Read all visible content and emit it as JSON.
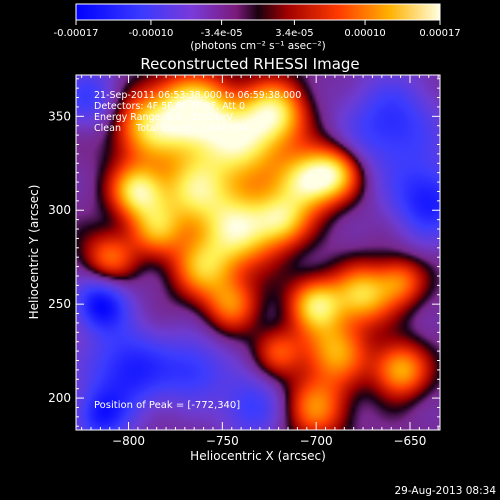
{
  "chart_data": {
    "type": "heatmap",
    "title": "Reconstructed RHESSI Image",
    "xlabel": "Heliocentric X (arcsec)",
    "ylabel": "Heliocentric Y (arcsec)",
    "xlim": [
      -828,
      -634
    ],
    "ylim": [
      183,
      372
    ],
    "xticks": [
      -800,
      -750,
      -700,
      -650
    ],
    "yticks": [
      200,
      250,
      300,
      350
    ],
    "colorbar": {
      "ticks": [
        "-0.00017",
        "-0.00010",
        "-3.4e-05",
        "3.4e-05",
        "0.00010",
        "0.00017"
      ],
      "tick_values": [
        -0.00017,
        -0.0001,
        -3.4e-05,
        3.4e-05,
        0.0001,
        0.00017
      ],
      "range": [
        -0.00017,
        0.00017
      ],
      "units_label": "(photons cm⁻² s⁻¹ asec⁻²)"
    },
    "info_lines": [
      "21-Sep-2011 06:53:38.000 to 06:59:38.000",
      "Detectors: 4F 5F 6F 7F 8F, Att 0",
      "Energy Range: 6.0 - 25.0 keV",
      "Clean     Total Counts: 2.64E+04"
    ],
    "peak_label": "Position of Peak = [-772,340]",
    "peak": {
      "x": -772,
      "y": 340
    },
    "blobs": [
      {
        "x": -765,
        "y": 352,
        "v": 1.0,
        "s": 14
      },
      {
        "x": -740,
        "y": 335,
        "v": 0.85,
        "s": 16
      },
      {
        "x": -722,
        "y": 352,
        "v": 0.8,
        "s": 12
      },
      {
        "x": -790,
        "y": 345,
        "v": 0.75,
        "s": 14
      },
      {
        "x": -795,
        "y": 310,
        "v": 0.9,
        "s": 10
      },
      {
        "x": -765,
        "y": 310,
        "v": 0.8,
        "s": 14
      },
      {
        "x": -740,
        "y": 290,
        "v": 0.9,
        "s": 14
      },
      {
        "x": -705,
        "y": 315,
        "v": 0.9,
        "s": 11
      },
      {
        "x": -690,
        "y": 320,
        "v": 0.75,
        "s": 10
      },
      {
        "x": -718,
        "y": 295,
        "v": 0.7,
        "s": 10
      },
      {
        "x": -760,
        "y": 270,
        "v": 0.7,
        "s": 12
      },
      {
        "x": -810,
        "y": 275,
        "v": 0.55,
        "s": 10
      },
      {
        "x": -785,
        "y": 290,
        "v": 0.6,
        "s": 10
      },
      {
        "x": -700,
        "y": 250,
        "v": 0.85,
        "s": 10
      },
      {
        "x": -675,
        "y": 255,
        "v": 0.8,
        "s": 11
      },
      {
        "x": -655,
        "y": 262,
        "v": 0.55,
        "s": 9
      },
      {
        "x": -690,
        "y": 225,
        "v": 0.7,
        "s": 12
      },
      {
        "x": -655,
        "y": 215,
        "v": 0.75,
        "s": 10
      },
      {
        "x": -720,
        "y": 225,
        "v": 0.45,
        "s": 9
      },
      {
        "x": -700,
        "y": 195,
        "v": 0.6,
        "s": 12
      },
      {
        "x": -745,
        "y": 250,
        "v": 0.55,
        "s": 10
      },
      {
        "x": -800,
        "y": 215,
        "v": -0.7,
        "s": 16
      },
      {
        "x": -765,
        "y": 215,
        "v": -0.5,
        "s": 12
      },
      {
        "x": -815,
        "y": 250,
        "v": -0.8,
        "s": 10
      },
      {
        "x": -660,
        "y": 345,
        "v": -0.6,
        "s": 18
      },
      {
        "x": -640,
        "y": 305,
        "v": -0.7,
        "s": 14
      },
      {
        "x": -820,
        "y": 360,
        "v": -0.5,
        "s": 12
      },
      {
        "x": -735,
        "y": 195,
        "v": -0.5,
        "s": 12
      },
      {
        "x": -815,
        "y": 190,
        "v": -0.6,
        "s": 10
      }
    ],
    "colors": {
      "colormap": [
        "#000000",
        "#2020ff",
        "#6a38c8",
        "#8c2a8c",
        "#2a0020",
        "#c00000",
        "#ff6a00",
        "#ffff60",
        "#ffffff"
      ]
    }
  },
  "footer": {
    "timestamp": "29-Aug-2013 08:34"
  }
}
